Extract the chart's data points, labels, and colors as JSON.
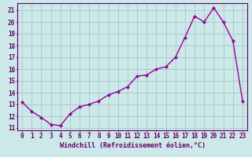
{
  "x": [
    0,
    1,
    2,
    3,
    4,
    5,
    6,
    7,
    8,
    9,
    10,
    11,
    12,
    13,
    14,
    15,
    16,
    17,
    18,
    19,
    20,
    21,
    22,
    23
  ],
  "y": [
    13.2,
    12.4,
    11.9,
    11.3,
    11.2,
    12.2,
    12.8,
    13.0,
    13.3,
    13.8,
    14.1,
    14.5,
    15.4,
    15.5,
    16.0,
    16.2,
    17.0,
    18.7,
    20.5,
    20.0,
    21.2,
    20.0,
    18.4,
    13.3
  ],
  "line_color": "#990099",
  "marker": "D",
  "marker_size": 2.2,
  "bg_color": "#cce8e8",
  "grid_color": "#aacccc",
  "xlabel": "Windchill (Refroidissement éolien,°C)",
  "xlabel_color": "#660066",
  "tick_color": "#660066",
  "spine_color": "#660066",
  "ylim": [
    10.8,
    21.6
  ],
  "xlim": [
    -0.5,
    23.5
  ],
  "yticks": [
    11,
    12,
    13,
    14,
    15,
    16,
    17,
    18,
    19,
    20,
    21
  ],
  "xticks": [
    0,
    1,
    2,
    3,
    4,
    5,
    6,
    7,
    8,
    9,
    10,
    11,
    12,
    13,
    14,
    15,
    16,
    17,
    18,
    19,
    20,
    21,
    22,
    23
  ],
  "tick_fontsize": 5.5,
  "xlabel_fontsize": 6.0,
  "linewidth": 1.0
}
